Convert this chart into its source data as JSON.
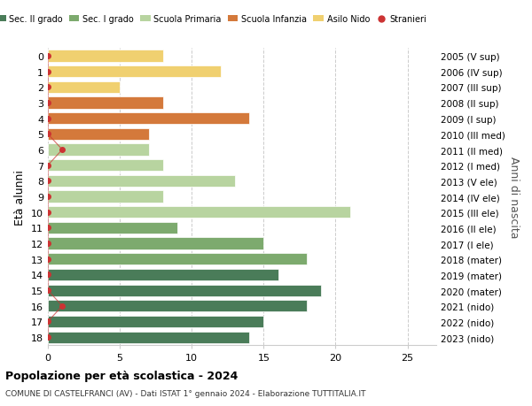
{
  "ages": [
    18,
    17,
    16,
    15,
    14,
    13,
    12,
    11,
    10,
    9,
    8,
    7,
    6,
    5,
    4,
    3,
    2,
    1,
    0
  ],
  "right_labels": [
    "2005 (V sup)",
    "2006 (IV sup)",
    "2007 (III sup)",
    "2008 (II sup)",
    "2009 (I sup)",
    "2010 (III med)",
    "2011 (II med)",
    "2012 (I med)",
    "2013 (V ele)",
    "2014 (IV ele)",
    "2015 (III ele)",
    "2016 (II ele)",
    "2017 (I ele)",
    "2018 (mater)",
    "2019 (mater)",
    "2020 (mater)",
    "2021 (nido)",
    "2022 (nido)",
    "2023 (nido)"
  ],
  "bar_values": [
    14,
    15,
    18,
    19,
    16,
    18,
    15,
    9,
    21,
    8,
    13,
    8,
    7,
    7,
    14,
    8,
    5,
    12,
    8
  ],
  "bar_colors": [
    "#4a7c59",
    "#4a7c59",
    "#4a7c59",
    "#4a7c59",
    "#4a7c59",
    "#7daa6e",
    "#7daa6e",
    "#7daa6e",
    "#b8d4a0",
    "#b8d4a0",
    "#b8d4a0",
    "#b8d4a0",
    "#b8d4a0",
    "#d4793b",
    "#d4793b",
    "#d4793b",
    "#f0d070",
    "#f0d070",
    "#f0d070"
  ],
  "stranieri_show": [
    true,
    true,
    true,
    true,
    true,
    true,
    true,
    true,
    true,
    true,
    true,
    true,
    true,
    true,
    true,
    true,
    true,
    true,
    true
  ],
  "stranieri_xval": [
    0,
    0,
    1,
    0,
    0,
    0,
    0,
    0,
    0,
    0,
    0,
    0,
    1,
    0,
    0,
    0,
    0,
    0,
    0
  ],
  "stranieri_color": "#cc3333",
  "legend_labels": [
    "Sec. II grado",
    "Sec. I grado",
    "Scuola Primaria",
    "Scuola Infanzia",
    "Asilo Nido",
    "Stranieri"
  ],
  "legend_colors": [
    "#4a7c59",
    "#7daa6e",
    "#b8d4a0",
    "#d4793b",
    "#f0d070",
    "#cc3333"
  ],
  "ylabel_left": "Età alunni",
  "ylabel_right": "Anni di nascita",
  "title": "Popolazione per età scolastica - 2024",
  "subtitle": "COMUNE DI CASTELFRANCI (AV) - Dati ISTAT 1° gennaio 2024 - Elaborazione TUTTITALIA.IT",
  "xlim": [
    0,
    27
  ],
  "ylim_top": 18.5,
  "ylim_bottom": -0.5,
  "bar_height": 0.75,
  "background_color": "#ffffff",
  "grid_color": "#cccccc"
}
